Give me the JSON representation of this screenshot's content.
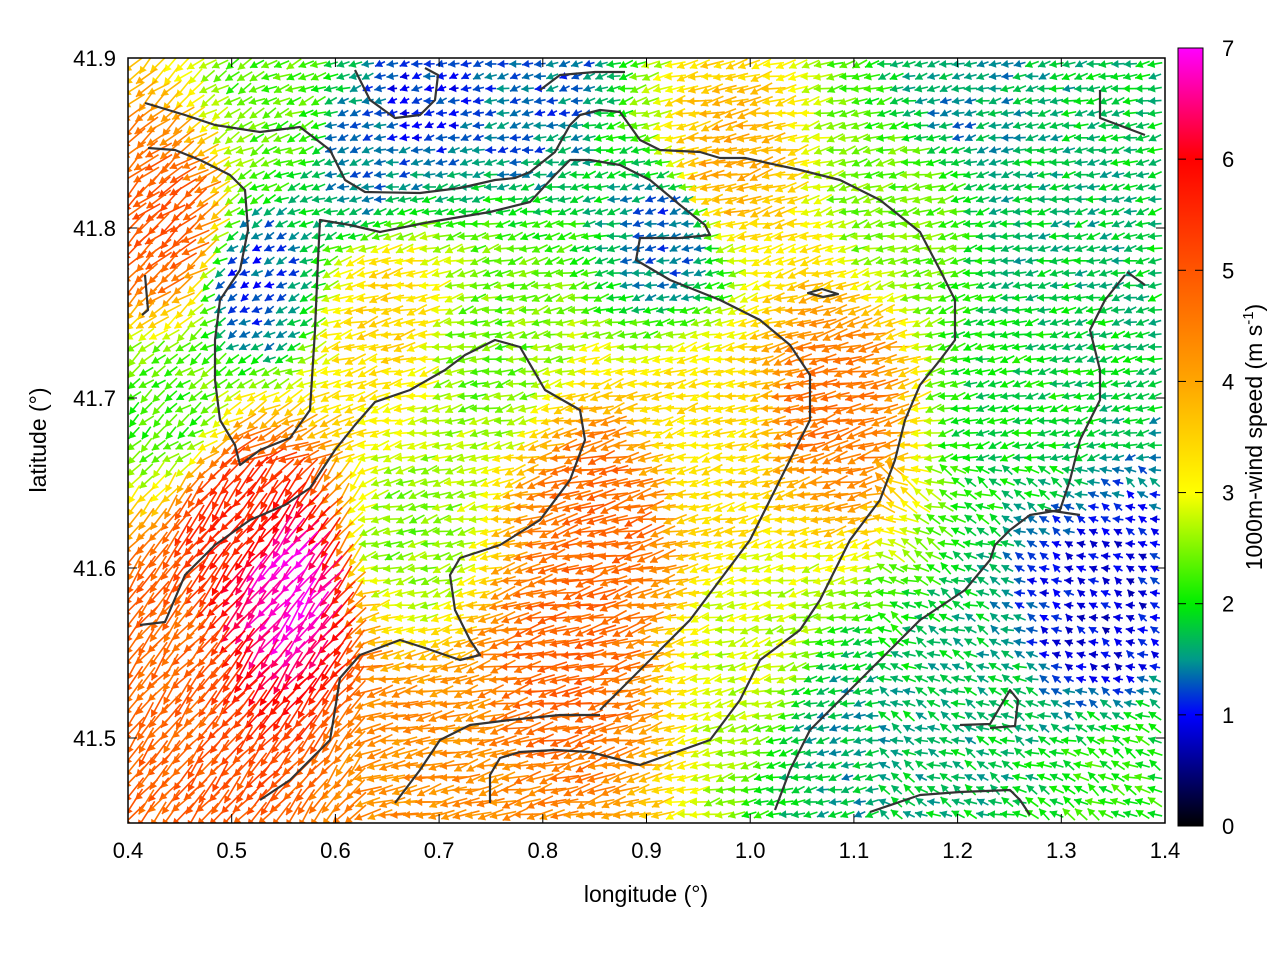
{
  "chart_data": {
    "type": "quiver",
    "title": "",
    "xlabel": "longitude (°)",
    "ylabel": "latitude (°)",
    "colorbar_label": {
      "main": "1000m-wind speed (m s",
      "sup": "-1",
      "close": ")"
    },
    "xlim": [
      0.4,
      1.4
    ],
    "ylim": [
      41.45,
      41.9
    ],
    "xticks": [
      0.4,
      0.5,
      0.6,
      0.7,
      0.8,
      0.9,
      1.0,
      1.1,
      1.2,
      1.3,
      1.4
    ],
    "xtick_labels": [
      "0.4",
      "0.5",
      "0.6",
      "0.7",
      "0.8",
      "0.9",
      "1.0",
      "1.1",
      "1.2",
      "1.3",
      "1.4"
    ],
    "yticks": [
      41.5,
      41.6,
      41.7,
      41.8,
      41.9
    ],
    "ytick_labels": [
      "41.5",
      "41.6",
      "41.7",
      "41.8",
      "41.9"
    ],
    "colorbar_range": [
      0,
      7
    ],
    "colorbar_ticks": [
      0,
      1,
      2,
      3,
      4,
      5,
      6,
      7
    ],
    "colorbar_tick_labels": [
      "0",
      "1",
      "2",
      "3",
      "4",
      "5",
      "6",
      "7"
    ],
    "colormap": [
      {
        "value": 0,
        "color": "#000000"
      },
      {
        "value": 1,
        "color": "#0000ff"
      },
      {
        "value": 1.5,
        "color": "#009a8a"
      },
      {
        "value": 2,
        "color": "#00ee00"
      },
      {
        "value": 3,
        "color": "#ffff00"
      },
      {
        "value": 4,
        "color": "#ffa500"
      },
      {
        "value": 5,
        "color": "#ff5500"
      },
      {
        "value": 6,
        "color": "#ff0000"
      },
      {
        "value": 7,
        "color": "#ff00ff"
      }
    ],
    "grid": false,
    "wind_field_regions": [
      {
        "lon": 0.55,
        "lat": 41.59,
        "speed": 6.8
      },
      {
        "lon": 0.5,
        "lat": 41.63,
        "speed": 5.6
      },
      {
        "lon": 0.44,
        "lat": 41.8,
        "speed": 5.0
      },
      {
        "lon": 0.43,
        "lat": 41.55,
        "speed": 4.8
      },
      {
        "lon": 0.86,
        "lat": 41.63,
        "speed": 4.8
      },
      {
        "lon": 0.83,
        "lat": 41.55,
        "speed": 4.8
      },
      {
        "lon": 0.68,
        "lat": 41.48,
        "speed": 4.3
      },
      {
        "lon": 1.08,
        "lat": 41.7,
        "speed": 4.6
      },
      {
        "lon": 0.97,
        "lat": 41.83,
        "speed": 4.0
      },
      {
        "lon": 0.55,
        "lat": 41.87,
        "speed": 2.3
      },
      {
        "lon": 0.52,
        "lat": 41.77,
        "speed": 1.2
      },
      {
        "lon": 0.93,
        "lat": 41.8,
        "speed": 1.2
      },
      {
        "lon": 0.68,
        "lat": 41.88,
        "speed": 1.1
      },
      {
        "lon": 0.62,
        "lat": 41.84,
        "speed": 1.4
      },
      {
        "lon": 0.78,
        "lat": 41.89,
        "speed": 1.3
      },
      {
        "lon": 1.2,
        "lat": 41.87,
        "speed": 1.5
      },
      {
        "lon": 1.28,
        "lat": 41.8,
        "speed": 1.7
      },
      {
        "lon": 1.25,
        "lat": 41.7,
        "speed": 1.9
      },
      {
        "lon": 1.33,
        "lat": 41.57,
        "speed": 0.9
      },
      {
        "lon": 1.22,
        "lat": 41.52,
        "speed": 1.7
      },
      {
        "lon": 1.08,
        "lat": 41.5,
        "speed": 1.6
      },
      {
        "lon": 0.96,
        "lat": 41.68,
        "speed": 3.3
      },
      {
        "lon": 0.67,
        "lat": 41.62,
        "speed": 2.5
      },
      {
        "lon": 0.75,
        "lat": 41.73,
        "speed": 2.4
      },
      {
        "lon": 0.65,
        "lat": 41.75,
        "speed": 3.4
      },
      {
        "lon": 0.44,
        "lat": 41.69,
        "speed": 2.2
      },
      {
        "lon": 1.0,
        "lat": 41.55,
        "speed": 2.8
      },
      {
        "lon": 1.15,
        "lat": 41.82,
        "speed": 2.4
      },
      {
        "lon": 1.35,
        "lat": 41.47,
        "speed": 2.1
      }
    ]
  }
}
